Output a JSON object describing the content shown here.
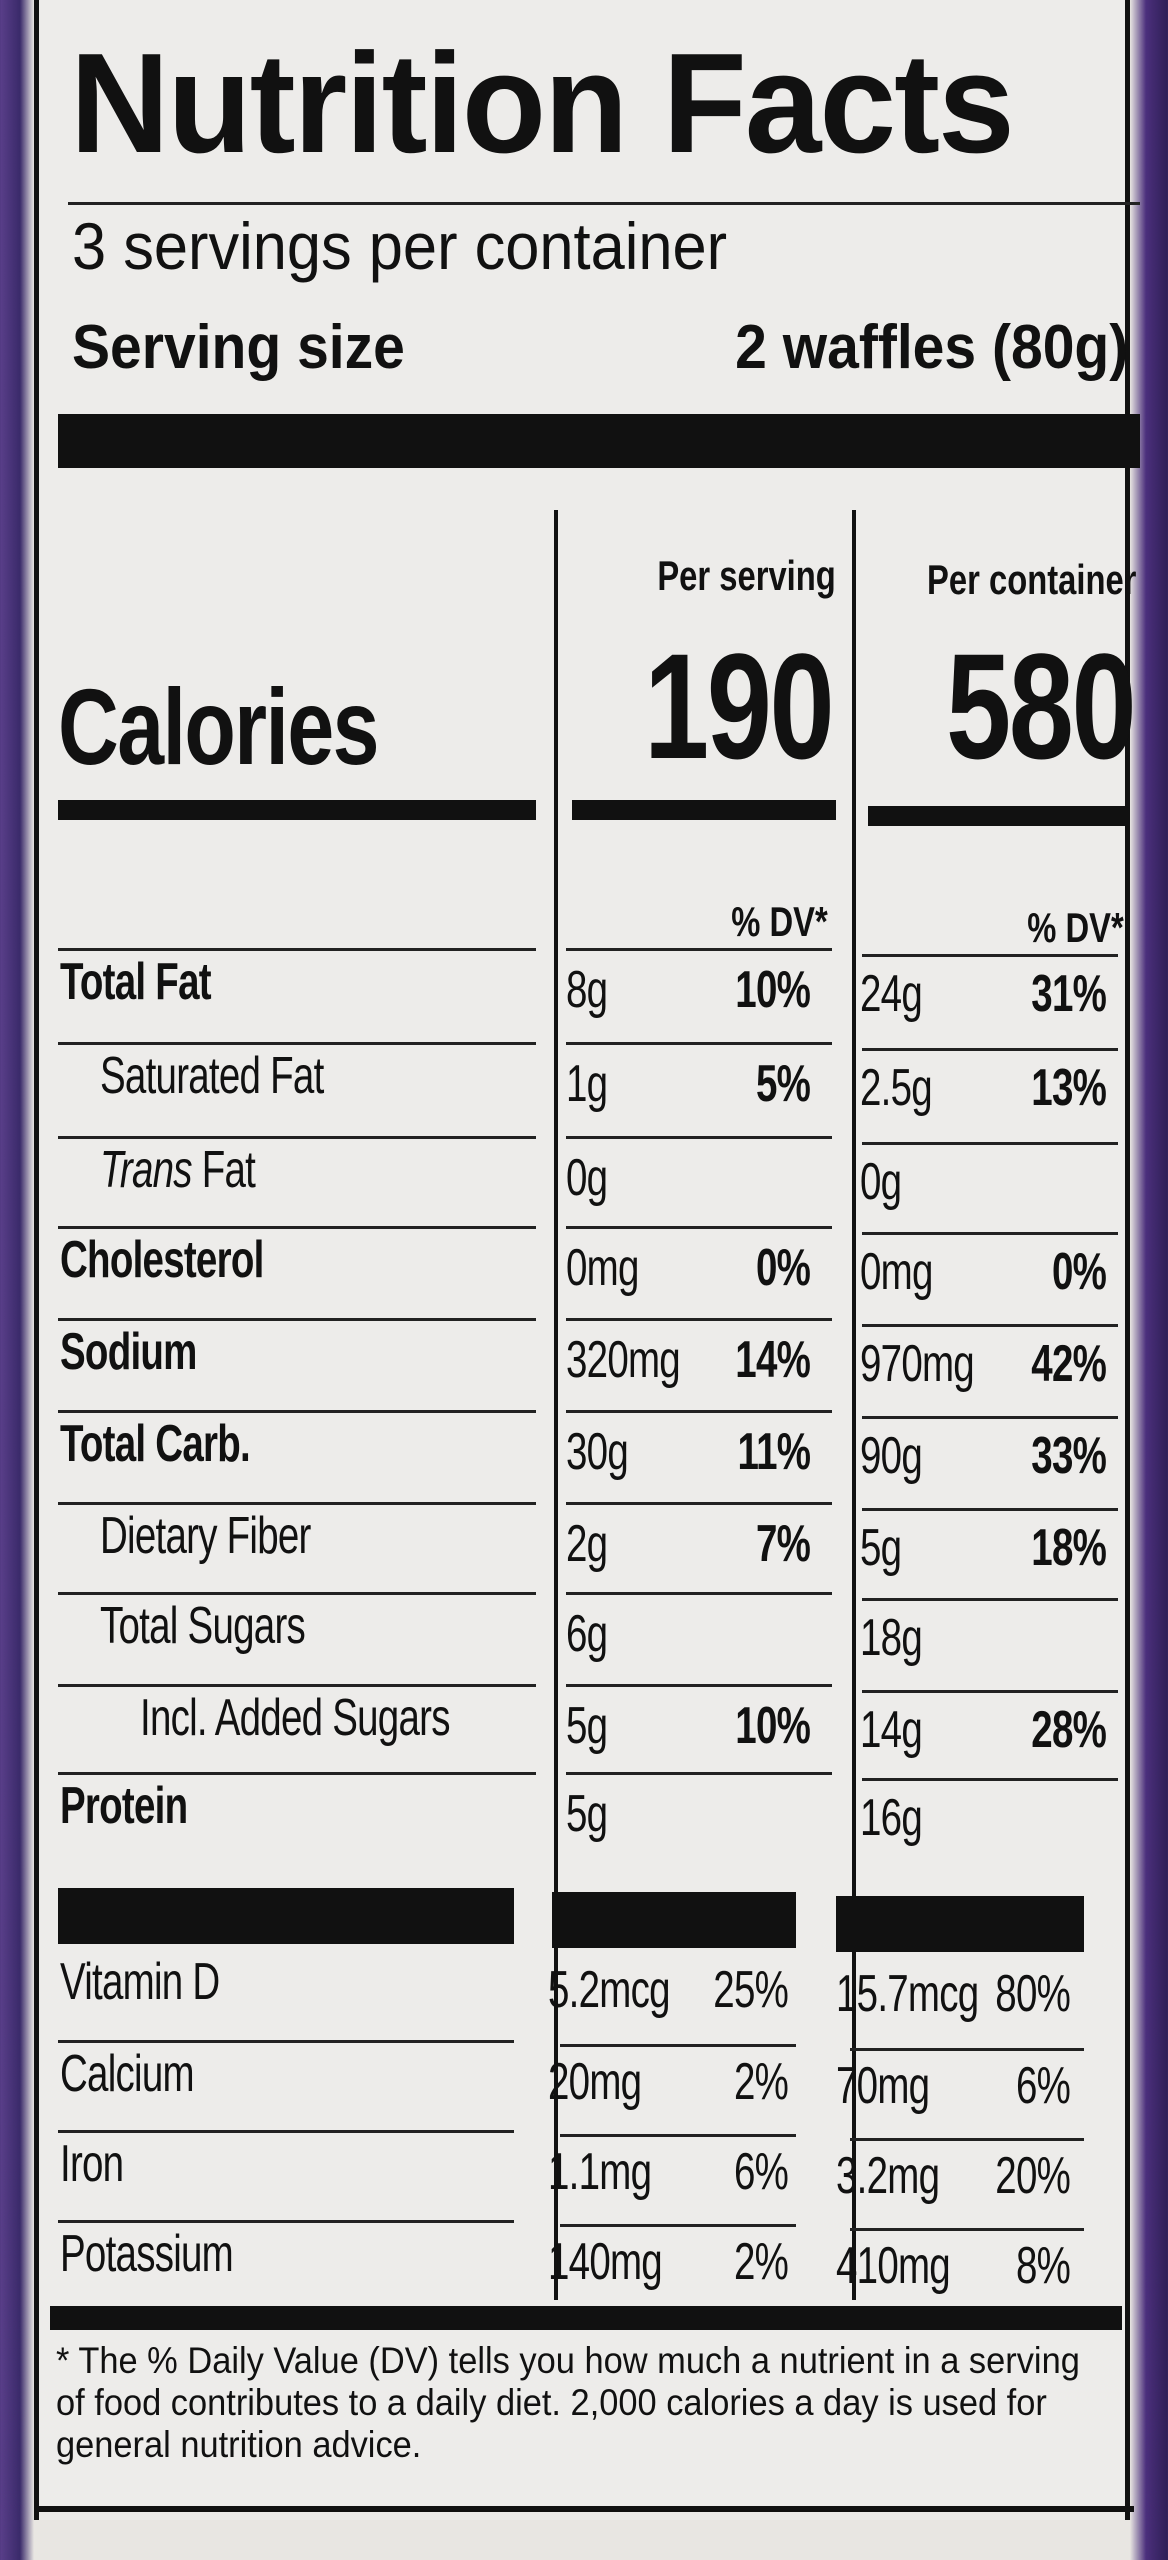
{
  "title": "Nutrition Facts",
  "servings_per_container": "3 servings per container",
  "serving_size_label": "Serving size",
  "serving_size_value": "2 waffles (80g)",
  "col_per_serving": "Per serving",
  "col_per_container": "Per container",
  "calories_label": "Calories",
  "calories_serving": "190",
  "calories_container": "580",
  "dv_header": "% DV*",
  "nutrients": [
    {
      "label": "Total Fat",
      "s_amt": "8g",
      "s_dv": "10%",
      "c_amt": "24g",
      "c_dv": "31%"
    },
    {
      "label": "Saturated Fat",
      "s_amt": "1g",
      "s_dv": "5%",
      "c_amt": "2.5g",
      "c_dv": "13%"
    },
    {
      "label_italic": "Trans",
      "label": " Fat",
      "s_amt": "0g",
      "s_dv": "",
      "c_amt": "0g",
      "c_dv": ""
    },
    {
      "label": "Cholesterol",
      "s_amt": "0mg",
      "s_dv": "0%",
      "c_amt": "0mg",
      "c_dv": "0%"
    },
    {
      "label": "Sodium",
      "s_amt": "320mg",
      "s_dv": "14%",
      "c_amt": "970mg",
      "c_dv": "42%"
    },
    {
      "label": "Total Carb.",
      "s_amt": "30g",
      "s_dv": "11%",
      "c_amt": "90g",
      "c_dv": "33%"
    },
    {
      "label": "Dietary Fiber",
      "s_amt": "2g",
      "s_dv": "7%",
      "c_amt": "5g",
      "c_dv": "18%"
    },
    {
      "label": "Total Sugars",
      "s_amt": "6g",
      "s_dv": "",
      "c_amt": "18g",
      "c_dv": ""
    },
    {
      "label": "Incl. Added Sugars",
      "s_amt": "5g",
      "s_dv": "10%",
      "c_amt": "14g",
      "c_dv": "28%"
    },
    {
      "label": "Protein",
      "s_amt": "5g",
      "s_dv": "",
      "c_amt": "16g",
      "c_dv": ""
    }
  ],
  "vitamins": [
    {
      "label": "Vitamin D",
      "s_amt": "5.2mcg",
      "s_dv": "25%",
      "c_amt": "15.7mcg",
      "c_dv": "80%"
    },
    {
      "label": "Calcium",
      "s_amt": "20mg",
      "s_dv": "2%",
      "c_amt": "70mg",
      "c_dv": "6%"
    },
    {
      "label": "Iron",
      "s_amt": "1.1mg",
      "s_dv": "6%",
      "c_amt": "3.2mg",
      "c_dv": "20%"
    },
    {
      "label": "Potassium",
      "s_amt": "140mg",
      "s_dv": "2%",
      "c_amt": "410mg",
      "c_dv": "8%"
    }
  ],
  "footnote": "* The % Daily Value (DV) tells you how much a nutrient in a serving of food contributes to a daily diet. 2,000 calories a day is used for general nutrition advice."
}
